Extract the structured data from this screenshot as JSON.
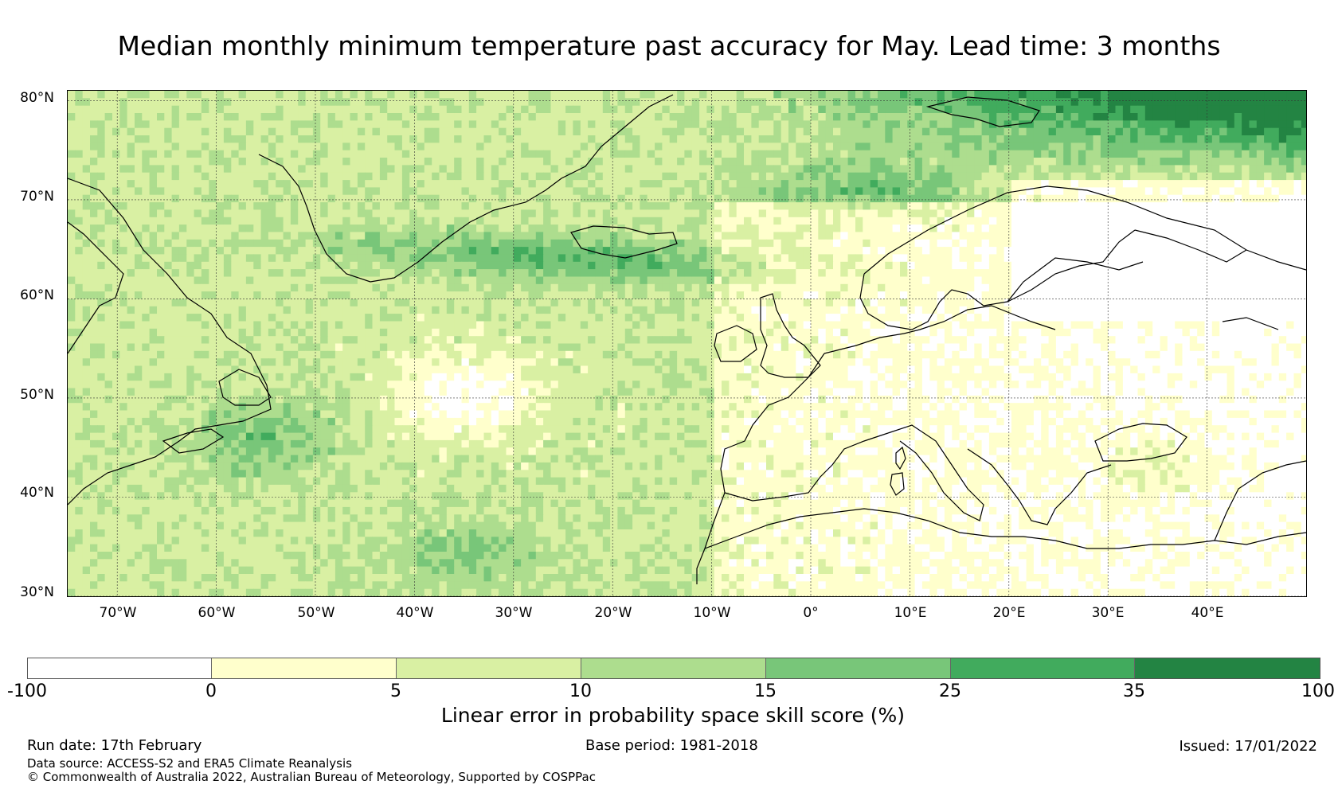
{
  "title": "Median monthly minimum temperature past accuracy for May. Lead time: 3 months",
  "map": {
    "lat_labels": [
      "80°N",
      "70°N",
      "60°N",
      "50°N",
      "40°N",
      "30°N"
    ],
    "lon_labels": [
      "70°W",
      "60°W",
      "50°W",
      "40°W",
      "30°W",
      "20°W",
      "10°W",
      "0°",
      "10°E",
      "20°E",
      "30°E",
      "40°E"
    ],
    "extent": {
      "lon": [
        -75,
        50
      ],
      "lat": [
        30,
        81
      ]
    },
    "grid_lines": true
  },
  "colorbar": {
    "title": "Linear error in probability space skill score (%)",
    "ticks": [
      "-100",
      "0",
      "5",
      "10",
      "15",
      "25",
      "35",
      "100"
    ],
    "colors": [
      "#ffffff",
      "#ffffcc",
      "#d9f0a3",
      "#addd8e",
      "#78c679",
      "#41ab5d",
      "#238443"
    ]
  },
  "footer": {
    "run_date": "Run date: 17th February",
    "base_period": "Base period: 1981-2018",
    "issued": "Issued: 17/01/2022",
    "data_source": "Data source: ACCESS-S2 and ERA5 Climate Reanalysis",
    "copyright": "© Commonwealth of Australia 2022, Australian Bureau of Meteorology, Supported by COSPPac"
  }
}
